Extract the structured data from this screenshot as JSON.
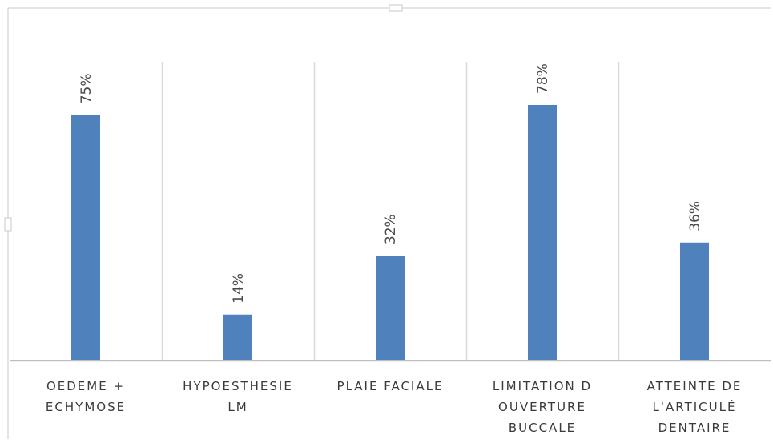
{
  "chart_data": {
    "type": "bar",
    "categories": [
      [
        "OEDEME +",
        "ECHYMOSE"
      ],
      [
        "HYPOESTHESIE",
        "LM"
      ],
      [
        "PLAIE FACIALE"
      ],
      [
        "LIMITATION D",
        "OUVERTURE",
        "BUCCALE"
      ],
      [
        "ATTEINTE  DE",
        "L'ARTICULÉ",
        "DENTAIRE"
      ]
    ],
    "values": [
      75,
      14,
      32,
      78,
      36
    ],
    "data_labels": [
      "75%",
      "14%",
      "32%",
      "78%",
      "36%"
    ],
    "ylim": [
      0,
      100
    ],
    "grid": true,
    "legend": "none",
    "colors": {
      "bar": "#4f81bd",
      "grid": "#d9d9d9",
      "axis": "#bfbfbf"
    }
  }
}
